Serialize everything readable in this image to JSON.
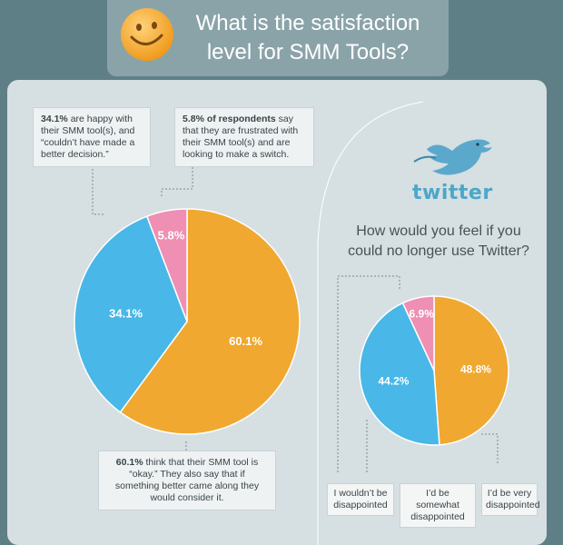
{
  "title": "What is the satisfaction level for SMM Tools?",
  "title_lines": [
    "What is the satisfaction",
    "level for SMM Tools?"
  ],
  "callouts": {
    "happy": {
      "strong": "34.1%",
      "text": " are happy with their SMM tool(s), and “couldn’t have made a better decision.”"
    },
    "frustrated": {
      "strong": "5.8% of respondents",
      "text": " say that they are frustrated with their SMM tool(s) and are looking to make a switch."
    },
    "okay": {
      "strong": "60.1%",
      "text": " think that their SMM tool is “okay.” They also say that if something better came along they would consider it."
    }
  },
  "twitter_logo_text": "twitter",
  "question_lines": [
    "How would you feel if you",
    "could no longer use Twitter?"
  ],
  "twitter_labels": {
    "not": "I wouldn’t be disappointed",
    "somewhat": "I’d be somewhat disappointed",
    "very": "I’d be very disappointed"
  },
  "chart_data": [
    {
      "type": "pie",
      "title": "What is the satisfaction level for SMM Tools?",
      "slices": [
        {
          "label": "60.1%",
          "value": 60.1,
          "color": "#f0a830"
        },
        {
          "label": "34.1%",
          "value": 34.1,
          "color": "#49b7e8"
        },
        {
          "label": "5.8%",
          "value": 5.8,
          "color": "#ee8fb3"
        }
      ]
    },
    {
      "type": "pie",
      "title": "How would you feel if you could no longer use Twitter?",
      "slices": [
        {
          "label": "48.8%",
          "value": 48.8,
          "color": "#f0a830"
        },
        {
          "label": "44.2%",
          "value": 44.2,
          "color": "#49b7e8"
        },
        {
          "label": "6.9%",
          "value": 6.9,
          "color": "#ee8fb3"
        }
      ]
    }
  ],
  "colors": {
    "background": "#5f7f87",
    "panel": "#d6dfe2",
    "title_text": "#ffffff"
  }
}
